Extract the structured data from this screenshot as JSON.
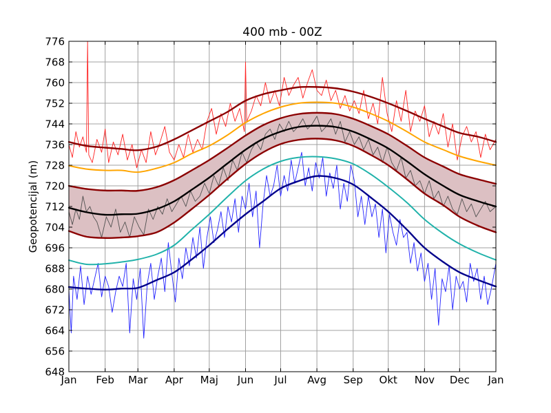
{
  "chart_data": {
    "type": "line",
    "title": "400 mb - 00Z",
    "xlabel": "",
    "ylabel": "Geopotencijal (m)",
    "ylim": [
      648,
      776
    ],
    "yticks": [
      648,
      656,
      664,
      672,
      680,
      688,
      696,
      704,
      712,
      720,
      728,
      736,
      744,
      752,
      760,
      768,
      776
    ],
    "xlim_day_of_year": [
      0,
      365
    ],
    "xticks": [
      {
        "label": "Jan",
        "day": 0
      },
      {
        "label": "Feb",
        "day": 31
      },
      {
        "label": "Mar",
        "day": 59
      },
      {
        "label": "Apr",
        "day": 90
      },
      {
        "label": "Maj",
        "day": 120
      },
      {
        "label": "Jun",
        "day": 151
      },
      {
        "label": "Jul",
        "day": 181
      },
      {
        "label": "Avg",
        "day": 212
      },
      {
        "label": "Sep",
        "day": 243
      },
      {
        "label": "Okt",
        "day": 273
      },
      {
        "label": "Nov",
        "day": 304
      },
      {
        "label": "Dec",
        "day": 334
      },
      {
        "label": "Jan",
        "day": 365
      }
    ],
    "grid": true,
    "legend": "none",
    "band": {
      "name": "mean ± 1 std",
      "fill": "#dcc0c3",
      "upper_series": "upper_std",
      "lower_series": "lower_std"
    },
    "series": [
      {
        "name": "max_smooth",
        "color": "#8b0000",
        "style": "thick",
        "x": [
          0,
          15,
          31,
          45,
          59,
          75,
          90,
          105,
          120,
          135,
          151,
          166,
          181,
          196,
          212,
          228,
          243,
          258,
          273,
          289,
          304,
          320,
          334,
          350,
          365
        ],
        "y": [
          737,
          735.5,
          734.8,
          734.3,
          733.8,
          735.2,
          738,
          741.5,
          745,
          748.5,
          753,
          755.5,
          757,
          758.2,
          758.3,
          757.8,
          756.5,
          754.5,
          752,
          749,
          746,
          743,
          740.5,
          739,
          737
        ]
      },
      {
        "name": "p90_smooth",
        "color": "#ffa500",
        "style": "medium",
        "x": [
          0,
          15,
          31,
          45,
          59,
          75,
          90,
          105,
          120,
          135,
          151,
          166,
          181,
          196,
          212,
          228,
          243,
          258,
          273,
          289,
          304,
          320,
          334,
          350,
          365
        ],
        "y": [
          727.8,
          726.5,
          726,
          726,
          725.3,
          726.8,
          729,
          732.5,
          735.5,
          739.5,
          744.5,
          748,
          750.5,
          752,
          752.4,
          752,
          750.5,
          748,
          745,
          741,
          737,
          734,
          731.5,
          729.5,
          728
        ]
      },
      {
        "name": "upper_std",
        "color": "#8b0000",
        "style": "thick",
        "x": [
          0,
          15,
          31,
          45,
          59,
          75,
          90,
          105,
          120,
          135,
          151,
          166,
          181,
          196,
          212,
          228,
          243,
          258,
          273,
          289,
          304,
          320,
          334,
          350,
          365
        ],
        "y": [
          720,
          718.8,
          718.2,
          718.2,
          718.1,
          719.5,
          722.2,
          726,
          730,
          734.5,
          739.5,
          743.5,
          746.2,
          747.8,
          748.3,
          747.8,
          746,
          743.2,
          740,
          735.5,
          731,
          727.5,
          724.5,
          722.5,
          720.8
        ]
      },
      {
        "name": "mean",
        "color": "#000000",
        "style": "thick",
        "x": [
          0,
          15,
          31,
          45,
          59,
          75,
          90,
          105,
          120,
          135,
          151,
          166,
          181,
          196,
          212,
          228,
          243,
          258,
          273,
          289,
          304,
          320,
          334,
          350,
          365
        ],
        "y": [
          711.5,
          709.8,
          708.8,
          709,
          709.2,
          711,
          714,
          718.5,
          723.2,
          728.5,
          734,
          738.2,
          741,
          742.8,
          743.3,
          742.8,
          741,
          738,
          734.5,
          729.5,
          724.5,
          720,
          716.5,
          714,
          712
        ]
      },
      {
        "name": "lower_std",
        "color": "#8b0000",
        "style": "thick",
        "x": [
          0,
          15,
          31,
          45,
          59,
          75,
          90,
          105,
          120,
          135,
          151,
          166,
          181,
          196,
          212,
          228,
          243,
          258,
          273,
          289,
          304,
          320,
          334,
          350,
          365
        ],
        "y": [
          702.5,
          700.3,
          699.8,
          700,
          700.5,
          702,
          705.8,
          711,
          716.5,
          722.5,
          728.5,
          733,
          736.2,
          737.8,
          738.3,
          737.6,
          735.5,
          732,
          728,
          722.5,
          717,
          712.5,
          708,
          704.5,
          702
        ]
      },
      {
        "name": "p10_smooth",
        "color": "#20b2aa",
        "style": "medium",
        "x": [
          0,
          15,
          31,
          45,
          59,
          75,
          90,
          105,
          120,
          135,
          151,
          166,
          181,
          196,
          212,
          228,
          243,
          258,
          273,
          289,
          304,
          320,
          334,
          350,
          365
        ],
        "y": [
          691.2,
          689.6,
          689.8,
          690.5,
          691.5,
          693.5,
          697,
          703,
          709,
          715.5,
          722,
          726.5,
          729.5,
          731,
          731.3,
          730.5,
          728.5,
          724.5,
          719.5,
          713.5,
          707,
          701.5,
          697.5,
          694,
          691.3
        ]
      },
      {
        "name": "min_smooth",
        "color": "#00008b",
        "style": "thick",
        "x": [
          0,
          15,
          31,
          45,
          59,
          75,
          90,
          105,
          120,
          135,
          151,
          166,
          181,
          196,
          212,
          228,
          243,
          258,
          273,
          289,
          304,
          320,
          334,
          350,
          365
        ],
        "y": [
          680.8,
          680.2,
          679.8,
          680.2,
          680.5,
          683.5,
          686.5,
          691.5,
          697,
          703,
          709,
          714,
          719,
          721.8,
          723.8,
          723,
          720.5,
          715.5,
          710,
          703,
          696,
          690.5,
          686.5,
          683.5,
          681
        ]
      },
      {
        "name": "daily_max",
        "color": "#ff2020",
        "style": "thin",
        "x": [
          0,
          3,
          6,
          9,
          12,
          15,
          16,
          17,
          20,
          24,
          28,
          31,
          34,
          38,
          42,
          46,
          50,
          54,
          58,
          62,
          66,
          70,
          74,
          78,
          82,
          86,
          90,
          94,
          98,
          102,
          106,
          110,
          114,
          118,
          122,
          126,
          130,
          134,
          138,
          142,
          146,
          150,
          151,
          152,
          156,
          160,
          164,
          168,
          172,
          176,
          180,
          184,
          188,
          192,
          196,
          200,
          204,
          208,
          212,
          216,
          220,
          224,
          228,
          232,
          236,
          240,
          244,
          248,
          252,
          256,
          260,
          264,
          268,
          272,
          276,
          280,
          284,
          288,
          292,
          296,
          300,
          304,
          308,
          312,
          316,
          320,
          324,
          328,
          332,
          336,
          340,
          344,
          348,
          352,
          356,
          360,
          365
        ],
        "y": [
          736,
          731,
          741,
          735,
          739,
          733,
          776,
          732,
          729,
          738,
          733,
          742,
          729,
          737,
          732,
          740,
          730,
          736,
          727,
          734,
          729,
          741,
          732,
          737,
          743,
          733,
          730,
          736,
          731,
          740,
          733,
          738,
          734,
          745,
          750,
          740,
          748,
          743,
          752,
          745,
          750,
          741,
          768,
          745,
          749,
          755,
          751,
          760,
          752,
          757,
          751,
          762,
          755,
          759,
          762,
          754,
          760,
          765,
          757,
          755,
          761,
          753,
          757,
          750,
          755,
          749,
          753,
          748,
          757,
          746,
          752,
          744,
          762,
          748,
          741,
          753,
          745,
          757,
          741,
          749,
          745,
          751,
          739,
          745,
          740,
          748,
          735,
          744,
          730,
          739,
          743,
          737,
          741,
          731,
          740,
          734,
          738
        ]
      },
      {
        "name": "daily_mean",
        "color": "#505050",
        "style": "thin",
        "x": [
          0,
          3,
          6,
          9,
          12,
          15,
          18,
          21,
          24,
          28,
          32,
          36,
          40,
          44,
          48,
          52,
          56,
          60,
          64,
          68,
          72,
          76,
          80,
          84,
          88,
          92,
          96,
          100,
          104,
          108,
          112,
          116,
          120,
          124,
          128,
          132,
          136,
          140,
          144,
          148,
          152,
          156,
          160,
          164,
          168,
          172,
          176,
          180,
          184,
          188,
          192,
          196,
          200,
          204,
          208,
          212,
          216,
          220,
          224,
          228,
          232,
          236,
          240,
          244,
          248,
          252,
          256,
          260,
          264,
          268,
          272,
          276,
          280,
          284,
          288,
          292,
          296,
          300,
          304,
          308,
          312,
          316,
          320,
          324,
          328,
          332,
          336,
          340,
          344,
          348,
          352,
          356,
          360,
          365
        ],
        "y": [
          710,
          705,
          711,
          707,
          716,
          710,
          712,
          708,
          706,
          700,
          708,
          704,
          711,
          702,
          706,
          700,
          708,
          704,
          701,
          711,
          707,
          712,
          709,
          715,
          710,
          713,
          716,
          712,
          718,
          714,
          716,
          721,
          717,
          724,
          720,
          727,
          722,
          730,
          726,
          733,
          729,
          734,
          737,
          734,
          740,
          742,
          738,
          744,
          741,
          745,
          741,
          743,
          746,
          742,
          744,
          747,
          741,
          743,
          746,
          740,
          745,
          737,
          741,
          736,
          739,
          734,
          738,
          732,
          735,
          729,
          735,
          729,
          726,
          731,
          723,
          726,
          720,
          722,
          717,
          722,
          715,
          718,
          712,
          716,
          711,
          709,
          715,
          710,
          713,
          708,
          711,
          714,
          710,
          712
        ]
      },
      {
        "name": "daily_min",
        "color": "#2020ff",
        "style": "thin",
        "x": [
          0,
          2,
          4,
          7,
          10,
          13,
          16,
          19,
          22,
          25,
          28,
          31,
          34,
          37,
          40,
          43,
          46,
          49,
          52,
          55,
          58,
          61,
          64,
          67,
          70,
          73,
          76,
          79,
          82,
          85,
          88,
          91,
          94,
          97,
          100,
          103,
          106,
          109,
          112,
          115,
          118,
          121,
          124,
          127,
          130,
          133,
          136,
          139,
          142,
          145,
          148,
          151,
          154,
          157,
          160,
          163,
          166,
          169,
          172,
          175,
          178,
          181,
          184,
          187,
          190,
          193,
          196,
          199,
          202,
          205,
          208,
          211,
          214,
          217,
          220,
          223,
          226,
          229,
          232,
          235,
          238,
          241,
          244,
          247,
          250,
          253,
          256,
          259,
          262,
          265,
          268,
          271,
          274,
          277,
          280,
          283,
          286,
          289,
          292,
          295,
          298,
          301,
          304,
          307,
          310,
          313,
          316,
          319,
          322,
          325,
          328,
          331,
          334,
          337,
          340,
          343,
          346,
          349,
          352,
          355,
          358,
          361,
          365
        ],
        "y": [
          680,
          663,
          685,
          676,
          689,
          674,
          685,
          678,
          684,
          690,
          677,
          685,
          681,
          671,
          679,
          685,
          681,
          690,
          663,
          684,
          676,
          688,
          661,
          682,
          690,
          676,
          685,
          692,
          679,
          698,
          686,
          675,
          692,
          684,
          696,
          689,
          700,
          692,
          704,
          688,
          700,
          708,
          698,
          703,
          710,
          700,
          712,
          706,
          715,
          702,
          716,
          711,
          721,
          708,
          718,
          696,
          713,
          724,
          716,
          720,
          728,
          716,
          724,
          718,
          730,
          721,
          727,
          733,
          720,
          727,
          718,
          729,
          723,
          731,
          716,
          725,
          719,
          728,
          711,
          721,
          714,
          728,
          722,
          708,
          716,
          705,
          716,
          708,
          713,
          700,
          711,
          694,
          709,
          702,
          697,
          707,
          700,
          702,
          690,
          698,
          687,
          694,
          683,
          690,
          676,
          688,
          666,
          684,
          679,
          689,
          672,
          685,
          680,
          683,
          675,
          690,
          683,
          688,
          676,
          685,
          674,
          680,
          690
        ]
      }
    ]
  },
  "colors": {
    "grid": "#a0a0a0",
    "axis": "#000000",
    "band_fill": "#dcc0c3"
  }
}
